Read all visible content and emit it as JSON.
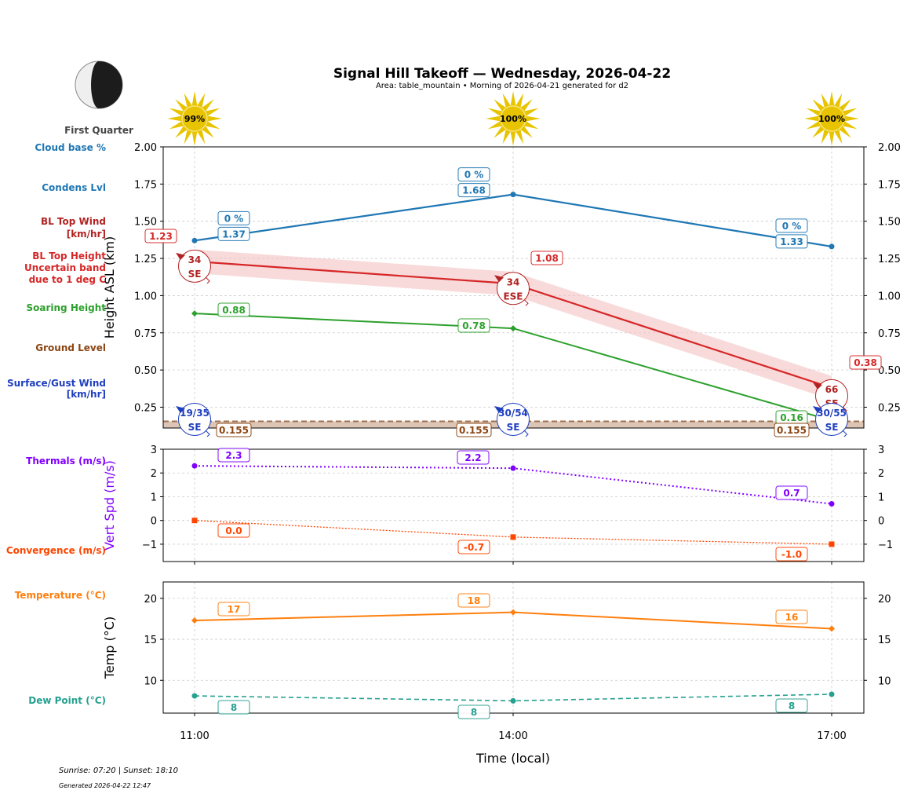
{
  "header": {
    "title": "Signal Hill Takeoff — Wednesday, 2026-04-22",
    "subtitle": "Area: table_mountain • Morning of 2026-04-21 generated for d2"
  },
  "moon": {
    "phase": "First Quarter",
    "icon": "moon-first-quarter-icon"
  },
  "sun": [
    {
      "time": "11:00",
      "label": "99%"
    },
    {
      "time": "14:00",
      "label": "100%"
    },
    {
      "time": "17:00",
      "label": "100%"
    }
  ],
  "side_labels": {
    "cloud_base": "Cloud base %",
    "condens": "Condens Lvl",
    "bl_wind_1": "BL Top Wind",
    "bl_wind_2": "[km/hr]",
    "bl_height_1": "BL Top Height",
    "bl_height_2": "Uncertain band",
    "bl_height_3": "due to 1 deg C",
    "soaring": "Soaring Height",
    "ground": "Ground Level",
    "surface_1": "Surface/Gust Wind",
    "surface_2": "[km/hr]",
    "thermals": "Thermals (m/s)",
    "convergence": "Convergence (m/s)",
    "temperature": "Temperature (°C)",
    "dewpoint": "Dew Point (°C)"
  },
  "colors": {
    "cloud": "#1f77b4",
    "bl": "#d62728",
    "bl_wind": "#b22222",
    "soaring": "#2ca02c",
    "ground": "#8b4513",
    "surface": "#1f3fbf",
    "thermals": "#8000ff",
    "convergence": "#ff4500",
    "temperature": "#ff7f0e",
    "dewpoint": "#26a08f"
  },
  "chart_data": [
    {
      "type": "line",
      "ylabel": "Height ASL (km)",
      "ylim": [
        0.11,
        2.0
      ],
      "yticks": [
        "0.25",
        "0.50",
        "0.75",
        "1.00",
        "1.25",
        "1.50",
        "1.75",
        "2.00"
      ],
      "grid": true,
      "x": [
        "11:00",
        "14:00",
        "17:00"
      ],
      "series": [
        {
          "key": "condens",
          "values": [
            1.37,
            1.68,
            1.33
          ],
          "labels": [
            "1.37",
            "1.68",
            "1.33"
          ],
          "cloud_pct": [
            "0 %",
            "0 %",
            "0 %"
          ]
        },
        {
          "key": "bl_top",
          "values": [
            1.23,
            1.08,
            0.38
          ],
          "labels": [
            "1.23",
            "1.08",
            "0.38"
          ],
          "band": [
            [
              1.15,
              1.31
            ],
            [
              1.0,
              1.16
            ],
            [
              0.3,
              0.46
            ]
          ]
        },
        {
          "key": "soaring",
          "values": [
            0.88,
            0.78,
            0.16
          ],
          "labels": [
            "0.88",
            "0.78",
            "0.16"
          ]
        },
        {
          "key": "ground",
          "values": [
            0.155,
            0.155,
            0.155
          ],
          "labels": [
            "0.155",
            "0.155",
            "0.155"
          ]
        }
      ],
      "bl_wind": [
        {
          "speed": "34",
          "dir": "SE"
        },
        {
          "speed": "34",
          "dir": "ESE"
        },
        {
          "speed": "66",
          "dir": "SE"
        }
      ],
      "surface_wind": [
        {
          "speed": "19/35",
          "dir": "SE"
        },
        {
          "speed": "30/54",
          "dir": "SE"
        },
        {
          "speed": "30/55",
          "dir": "SE"
        }
      ]
    },
    {
      "type": "line",
      "ylabel": "Vert Spd (m/s)",
      "ylim": [
        -1.73,
        3
      ],
      "yticks": [
        "−1",
        "0",
        "1",
        "2",
        "3"
      ],
      "grid": true,
      "x": [
        "11:00",
        "14:00",
        "17:00"
      ],
      "series": [
        {
          "key": "thermals",
          "values": [
            2.3,
            2.2,
            0.7
          ],
          "labels": [
            "2.3",
            "2.2",
            "0.7"
          ]
        },
        {
          "key": "convergence",
          "values": [
            0.0,
            -0.7,
            -1.0
          ],
          "labels": [
            "0.0",
            "-0.7",
            "-1.0"
          ]
        }
      ]
    },
    {
      "type": "line",
      "ylabel": "Temp (°C)",
      "xlabel": "Time (local)",
      "ylim": [
        6,
        22
      ],
      "yticks": [
        "10",
        "15",
        "20"
      ],
      "grid": true,
      "x": [
        "11:00",
        "14:00",
        "17:00"
      ],
      "series": [
        {
          "key": "temperature",
          "values": [
            17.3,
            18.3,
            16.3
          ],
          "labels": [
            "17",
            "18",
            "16"
          ]
        },
        {
          "key": "dewpoint",
          "values": [
            8.1,
            7.5,
            8.3
          ],
          "labels": [
            "8",
            "8",
            "8"
          ]
        }
      ]
    }
  ],
  "footer": {
    "sun_times": "Sunrise: 07:20 | Sunset: 18:10",
    "generated": "Generated 2026-04-22 12:47"
  }
}
